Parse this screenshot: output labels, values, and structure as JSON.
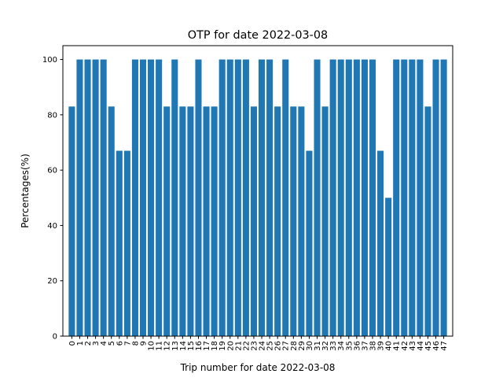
{
  "chart_data": {
    "type": "bar",
    "title": "OTP for date 2022-03-08",
    "xlabel": "Trip number for date 2022-03-08",
    "ylabel": "Percentages(%)",
    "categories": [
      "0",
      "1",
      "2",
      "3",
      "4",
      "5",
      "6",
      "7",
      "8",
      "9",
      "10",
      "11",
      "12",
      "13",
      "14",
      "15",
      "16",
      "17",
      "18",
      "19",
      "20",
      "21",
      "22",
      "23",
      "24",
      "25",
      "26",
      "27",
      "28",
      "29",
      "30",
      "31",
      "32",
      "33",
      "34",
      "35",
      "36",
      "37",
      "38",
      "39",
      "40",
      "41",
      "42",
      "43",
      "44",
      "45",
      "46",
      "47"
    ],
    "values": [
      83,
      100,
      100,
      100,
      100,
      83,
      67,
      67,
      100,
      100,
      100,
      100,
      83,
      100,
      83,
      83,
      100,
      83,
      83,
      100,
      100,
      100,
      100,
      83,
      100,
      100,
      83,
      100,
      83,
      83,
      67,
      100,
      83,
      100,
      100,
      100,
      100,
      100,
      100,
      67,
      50,
      100,
      100,
      100,
      100,
      83,
      100,
      100
    ],
    "ylim": [
      0,
      105
    ],
    "yticks": [
      0,
      20,
      40,
      60,
      80,
      100
    ],
    "grid": false,
    "legend": "none",
    "bar_color": "#1f77b4"
  }
}
